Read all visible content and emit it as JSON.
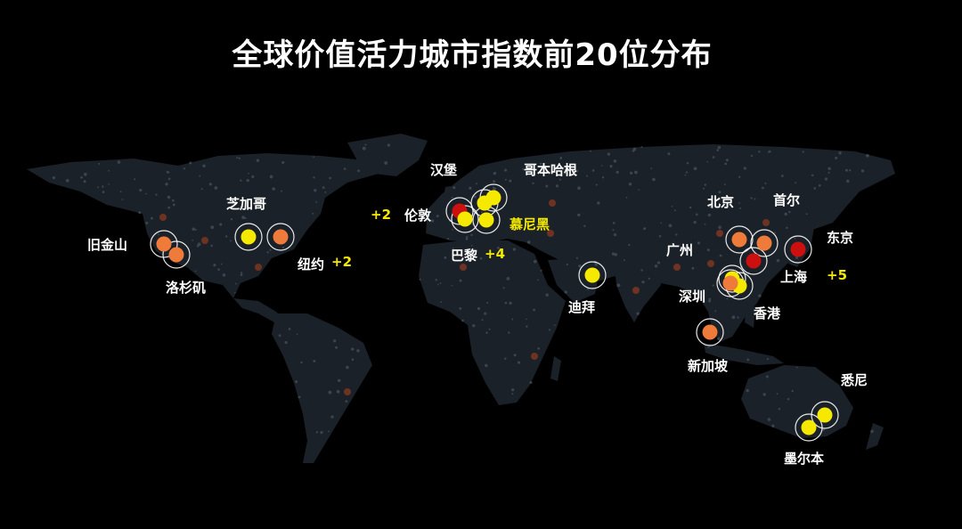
{
  "title": "全球价值活力城市指数前20位分布",
  "colors": {
    "background": "#000000",
    "land": "#1b2128",
    "tier_top": "#cc0f0f",
    "tier_mid": "#ef7b3b",
    "tier_low": "#f5e900",
    "ring": "#ffffff",
    "label": "#ffffff",
    "label_highlight": "#f5e900"
  },
  "cities": [
    {
      "name": "旧金山",
      "tier": "mid"
    },
    {
      "name": "洛杉矶",
      "tier": "mid"
    },
    {
      "name": "芝加哥",
      "tier": "low"
    },
    {
      "name": "纽约",
      "tier": "mid"
    },
    {
      "name": "伦敦",
      "tier": "top"
    },
    {
      "name": "巴黎",
      "tier": "low"
    },
    {
      "name": "汉堡",
      "tier": "low"
    },
    {
      "name": "哥本哈根",
      "tier": "low"
    },
    {
      "name": "慕尼黑",
      "tier": "low"
    },
    {
      "name": "迪拜",
      "tier": "low"
    },
    {
      "name": "北京",
      "tier": "mid"
    },
    {
      "name": "首尔",
      "tier": "mid"
    },
    {
      "name": "东京",
      "tier": "top"
    },
    {
      "name": "上海",
      "tier": "top"
    },
    {
      "name": "广州",
      "tier": "low"
    },
    {
      "name": "深圳",
      "tier": "low"
    },
    {
      "name": "香港",
      "tier": "mid"
    },
    {
      "name": "新加坡",
      "tier": "mid"
    },
    {
      "name": "悉尼",
      "tier": "low"
    },
    {
      "name": "墨尔本",
      "tier": "low"
    }
  ],
  "extra_counts": {
    "london": "+2",
    "newyork": "+2",
    "paris": "+4",
    "shanghai": "+5"
  }
}
